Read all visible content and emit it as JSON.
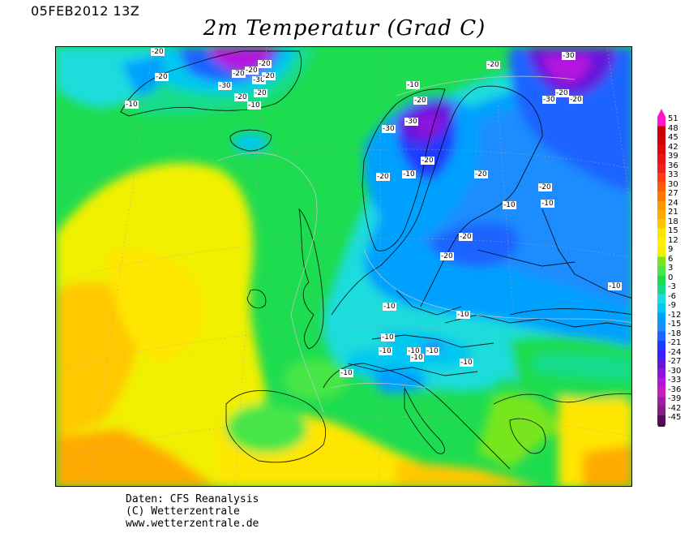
{
  "header": {
    "run_time": "05FEB2012 13Z",
    "title": "2m Temperatur (Grad C)"
  },
  "map": {
    "variable": "2m temperature",
    "unit": "Grad C",
    "region": "Europe / North Atlantic",
    "contour_labels": [
      "-20",
      "-20",
      "-10",
      "-30",
      "-20",
      "-20",
      "-20",
      "-20",
      "-10",
      "-20",
      "-30",
      "-20",
      "-10",
      "-20",
      "-30",
      "-30",
      "-20",
      "-20",
      "-10",
      "-30",
      "-20",
      "-20",
      "-30",
      "-20",
      "-10",
      "-20",
      "-20",
      "-10",
      "-20",
      "-20",
      "-10",
      "-10",
      "-10",
      "-10",
      "-10",
      "-10",
      "-10",
      "-10",
      "-10",
      "-10"
    ]
  },
  "legend": {
    "labels": [
      "51",
      "48",
      "45",
      "42",
      "39",
      "36",
      "33",
      "30",
      "27",
      "24",
      "21",
      "18",
      "15",
      "12",
      "9",
      "6",
      "3",
      "0",
      "-3",
      "-6",
      "-9",
      "-12",
      "-15",
      "-18",
      "-21",
      "-24",
      "-27",
      "-30",
      "-33",
      "-36",
      "-39",
      "-42",
      "-45"
    ],
    "colors": [
      "#ff14c8",
      "#c80000",
      "#d20000",
      "#dc0a0a",
      "#e61414",
      "#f01e1e",
      "#fa3c14",
      "#fa5a0a",
      "#ff7800",
      "#ff9600",
      "#ffaa00",
      "#ffc800",
      "#ffe600",
      "#fff000",
      "#f0f000",
      "#78e61e",
      "#46e646",
      "#1edc50",
      "#14dc8c",
      "#1edcdc",
      "#00c8f0",
      "#00a0ff",
      "#1e8cff",
      "#1e64ff",
      "#1e3cff",
      "#3c1eff",
      "#6414dc",
      "#8c14dc",
      "#b414dc",
      "#c81ebe",
      "#a01ea0",
      "#821e82",
      "#5a0a5a"
    ]
  },
  "credits": {
    "line1": "Daten: CFS Reanalysis",
    "line2": "(C) Wetterzentrale",
    "line3": "www.wetterzentrale.de"
  }
}
